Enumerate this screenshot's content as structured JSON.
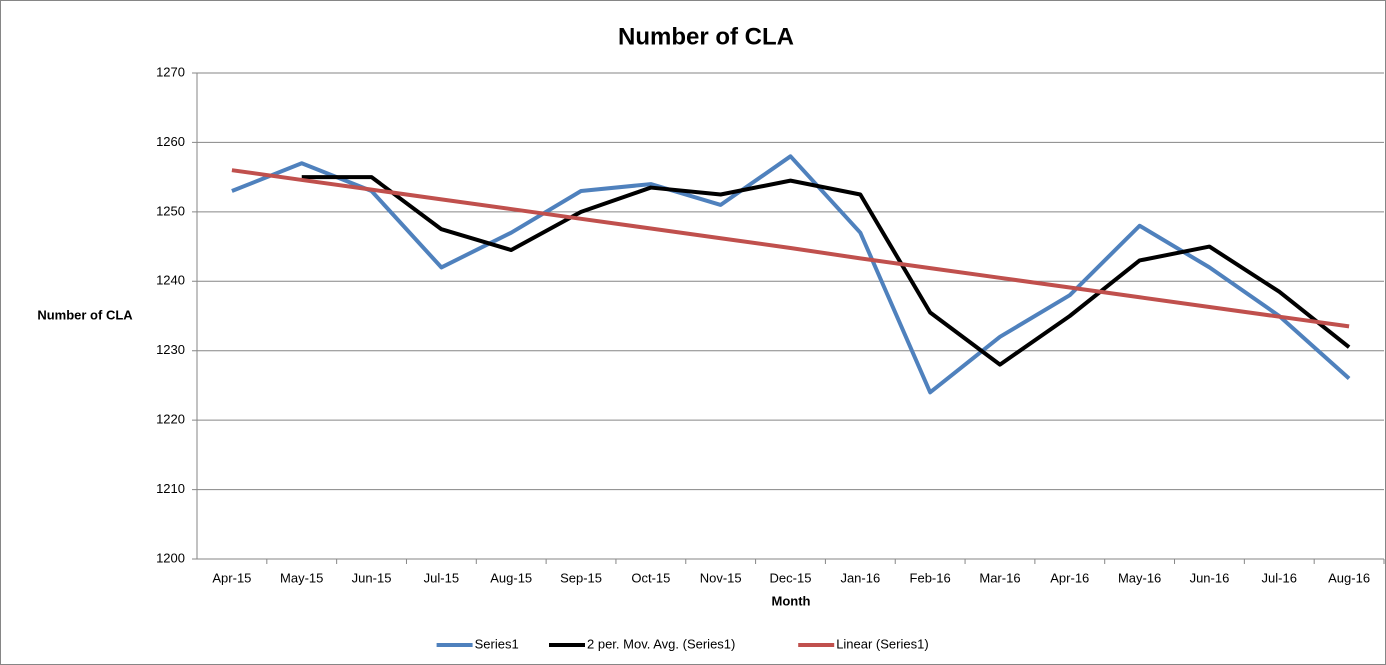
{
  "chart_data": {
    "type": "line",
    "title": "Number of CLA",
    "x_label": "Month",
    "y_label": "Number of CLA",
    "categories": [
      "Apr-15",
      "May-15",
      "Jun-15",
      "Jul-15",
      "Aug-15",
      "Sep-15",
      "Oct-15",
      "Nov-15",
      "Dec-15",
      "Jan-16",
      "Feb-16",
      "Mar-16",
      "Apr-16",
      "May-16",
      "Jun-16",
      "Jul-16",
      "Aug-16"
    ],
    "series": [
      {
        "name": "Series1",
        "color": "#4f81bd",
        "values": [
          1253,
          1257,
          1253,
          1242,
          1247,
          1253,
          1254,
          1251,
          1258,
          1247,
          1224,
          1232,
          1238,
          1248,
          1242,
          1235,
          1226
        ]
      },
      {
        "name": "2 per. Mov. Avg. (Series1)",
        "color": "#000000",
        "values": [
          null,
          1255,
          1255,
          1247.5,
          1244.5,
          1250,
          1253.5,
          1252.5,
          1254.5,
          1252.5,
          1235.5,
          1228,
          1235,
          1243,
          1245,
          1238.5,
          1230.5
        ]
      },
      {
        "name": "Linear (Series1)",
        "color": "#c0504d",
        "values": [
          1256,
          1254.6,
          1253.2,
          1251.8,
          1250.4,
          1249,
          1247.6,
          1246.2,
          1244.8,
          1243.3,
          1241.9,
          1240.5,
          1239.1,
          1237.7,
          1236.3,
          1234.9,
          1233.5
        ]
      }
    ],
    "ylim": [
      1200,
      1270
    ],
    "yticks": [
      1200,
      1210,
      1220,
      1230,
      1240,
      1250,
      1260,
      1270
    ],
    "grid": true,
    "legend": "bottom"
  }
}
